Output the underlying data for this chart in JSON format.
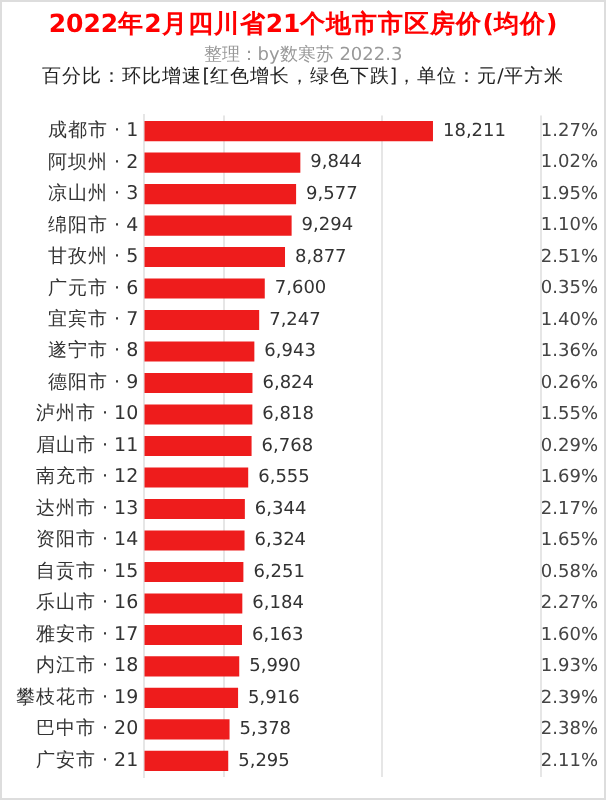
{
  "chart_data": {
    "type": "bar",
    "orientation": "horizontal",
    "title": "2022年2月四川省21个地市市区房价(均价)",
    "subtitle": "整理：by数寒苏 2022.3",
    "annotations": [
      "百分比：环比增速[红色增长，绿色下跌]，单位：元/平方米",
      "1.27%",
      "1.02%",
      "1.95%",
      "1.10%",
      "2.51%",
      "0.35%",
      "1.40%",
      "1.36%",
      "0.26%",
      "1.55%",
      "0.29%",
      "1.69%",
      "2.17%",
      "1.65%",
      "0.58%",
      "2.27%",
      "1.60%",
      "1.93%",
      "2.39%",
      "2.38%",
      "2.11%"
    ],
    "categories": [
      "成都市 · 1",
      "阿坝州 · 2",
      "凉山州 · 3",
      "绵阳市 · 4",
      "甘孜州 · 5",
      "广元市 · 6",
      "宜宾市 · 7",
      "遂宁市 · 8",
      "德阳市 · 9",
      "泸州市 · 10",
      "眉山市 · 11",
      "南充市 · 12",
      "达州市 · 13",
      "资阳市 · 14",
      "自贡市 · 15",
      "乐山市 · 16",
      "雅安市 · 17",
      "内江市 · 18",
      "攀枝花市 · 19",
      "巴中市 · 20",
      "广安市 · 21"
    ],
    "values": [
      18211,
      9844,
      9577,
      9294,
      8877,
      7600,
      7247,
      6943,
      6824,
      6818,
      6768,
      6555,
      6344,
      6324,
      6251,
      6184,
      6163,
      5990,
      5916,
      5378,
      5295
    ],
    "value_labels": [
      "18,211",
      "9,844",
      "9,577",
      "9,294",
      "8,877",
      "7,600",
      "7,247",
      "6,943",
      "6,824",
      "6,818",
      "6,768",
      "6,555",
      "6,344",
      "6,324",
      "6,251",
      "6,184",
      "6,163",
      "5,990",
      "5,916",
      "5,378",
      "5,295"
    ],
    "color": "#ee1c1c",
    "xlim": [
      0,
      29000
    ],
    "xticks": [
      {
        "value": 5000,
        "label": null
      },
      {
        "value": 15000,
        "label": null
      },
      {
        "value": 25000,
        "label": null
      }
    ],
    "grid": "x",
    "legend": false,
    "tick_labels": "y"
  }
}
